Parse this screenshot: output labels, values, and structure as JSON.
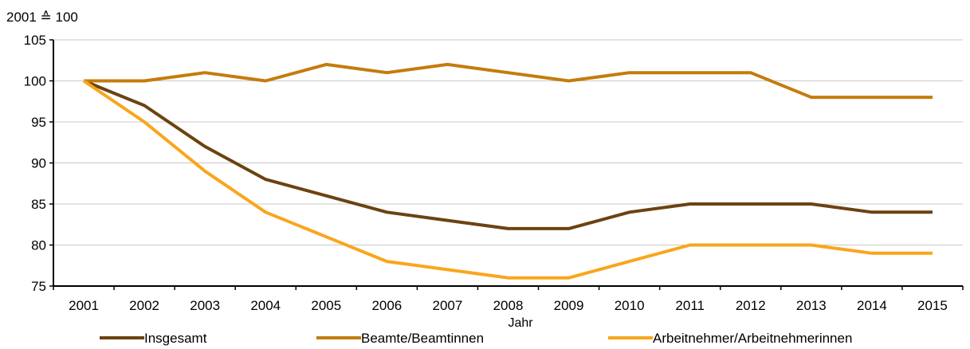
{
  "chart_data": {
    "type": "line",
    "title": "",
    "unit_label": "2001 ≙ 100",
    "xlabel": "Jahr",
    "ylabel": "",
    "x": [
      2001,
      2002,
      2003,
      2004,
      2005,
      2006,
      2007,
      2008,
      2009,
      2010,
      2011,
      2012,
      2013,
      2014,
      2015
    ],
    "ylim": [
      75,
      105
    ],
    "yticks": [
      75,
      80,
      85,
      90,
      95,
      100,
      105
    ],
    "grid": "horizontal",
    "legend_position": "bottom",
    "series": [
      {
        "name": "Insgesamt",
        "color": "#6b4310",
        "values": [
          100,
          97,
          92,
          88,
          86,
          84,
          83,
          82,
          82,
          84,
          85,
          85,
          85,
          84,
          84
        ]
      },
      {
        "name": "Beamte/Beamtinnen",
        "color": "#c47c0c",
        "values": [
          100,
          100,
          101,
          100,
          102,
          101,
          102,
          101,
          100,
          101,
          101,
          101,
          98,
          98,
          98
        ]
      },
      {
        "name": "Arbeitnehmer/Arbeitnehmerinnen",
        "color": "#f9a61c",
        "values": [
          100,
          95,
          89,
          84,
          81,
          78,
          77,
          76,
          76,
          78,
          80,
          80,
          80,
          79,
          79
        ]
      }
    ]
  }
}
